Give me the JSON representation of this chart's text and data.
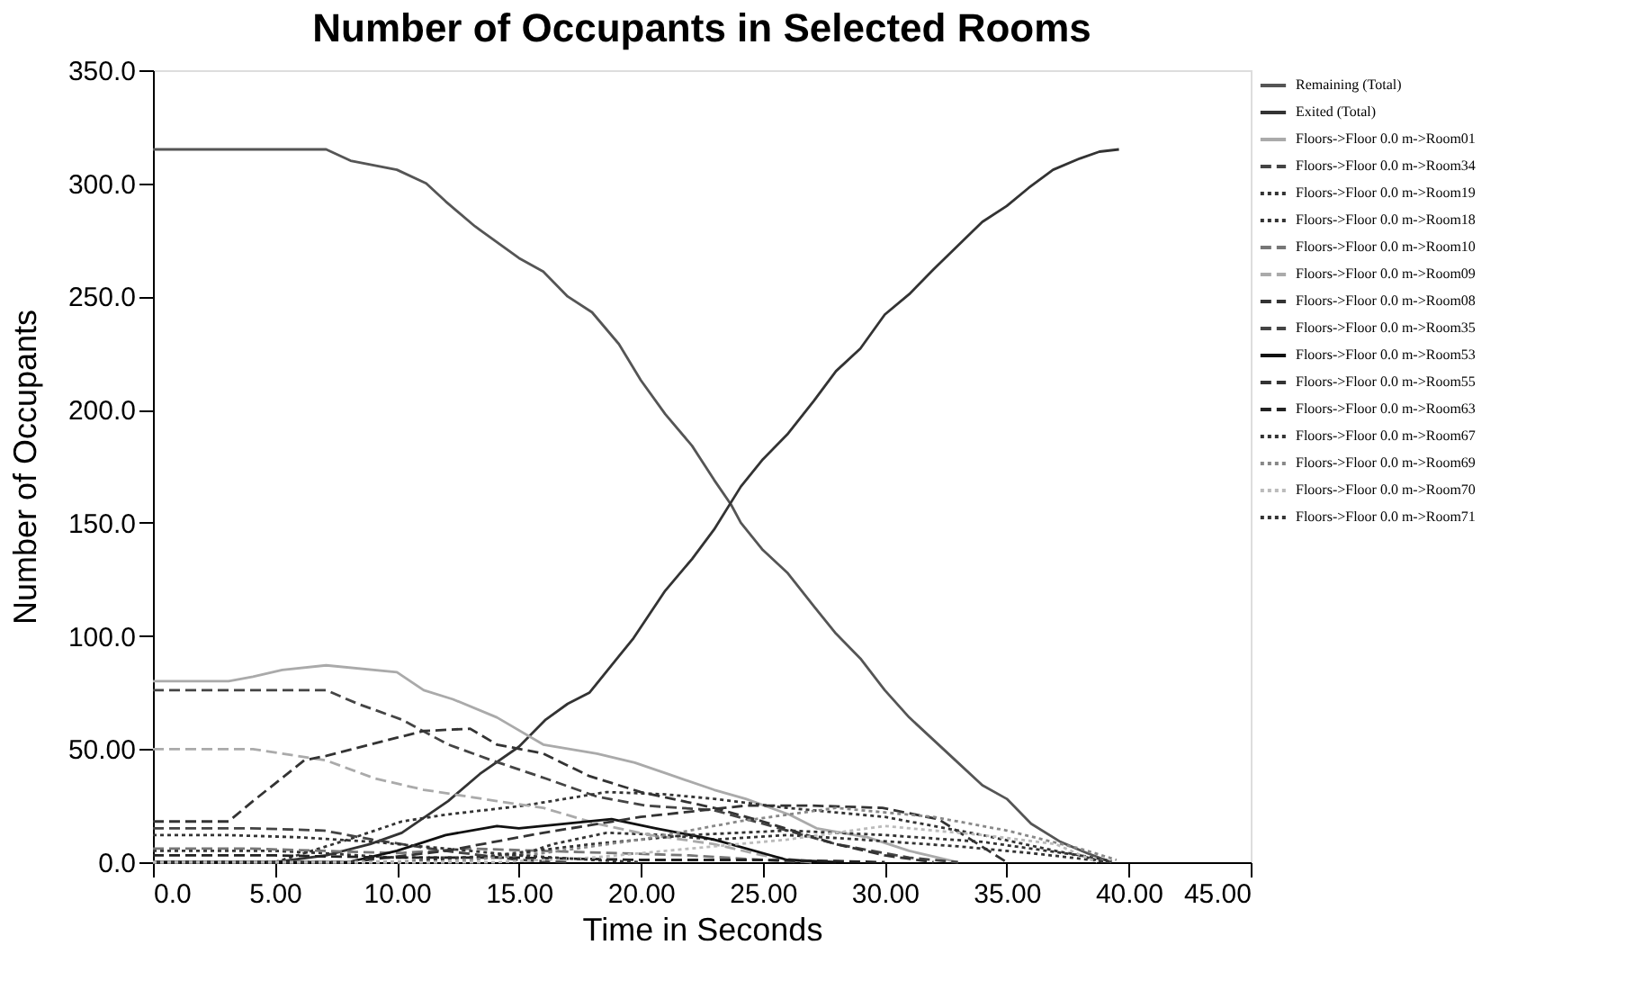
{
  "chart_data": {
    "type": "line",
    "title": "Number of Occupants in Selected Rooms",
    "xlabel": "Time in Seconds",
    "ylabel": "Number of Occupants",
    "xlim": [
      0,
      45
    ],
    "xticks": [
      {
        "value": 0,
        "label": "0.0"
      },
      {
        "value": 5,
        "label": "5.00"
      },
      {
        "value": 10,
        "label": "10.00"
      },
      {
        "value": 15,
        "label": "15.00"
      },
      {
        "value": 20,
        "label": "20.00"
      },
      {
        "value": 25,
        "label": "25.00"
      },
      {
        "value": 30,
        "label": "30.00"
      },
      {
        "value": 35,
        "label": "35.00"
      },
      {
        "value": 40,
        "label": "40.00"
      },
      {
        "value": 45,
        "label": "45.00"
      }
    ],
    "ylim": [
      0,
      350
    ],
    "yticks": [
      {
        "value": 0,
        "label": "0.0"
      },
      {
        "value": 50,
        "label": "50.00"
      },
      {
        "value": 100,
        "label": "100.0"
      },
      {
        "value": 150,
        "label": "150.0"
      },
      {
        "value": 200,
        "label": "200.0"
      },
      {
        "value": 250,
        "label": "250.0"
      },
      {
        "value": 300,
        "label": "300.0"
      },
      {
        "value": 350,
        "label": "350.0"
      }
    ],
    "grid": false,
    "legend": "top right",
    "marker": "none",
    "series": [
      {
        "name": "Remaining (Total)",
        "color": "#555555",
        "line_style": "solid",
        "x": [
          0,
          7.1,
          8.1,
          10,
          11.2,
          12,
          13.2,
          15,
          16,
          17,
          18,
          19.1,
          20,
          21,
          22.1,
          23,
          23.7,
          24.1,
          25,
          26,
          27.1,
          28,
          29,
          30,
          31,
          32.9,
          34,
          35,
          36,
          37.2,
          38.3,
          39.3
        ],
        "values": [
          315,
          315,
          310,
          306,
          300,
          292,
          281,
          267,
          261,
          250,
          243,
          229,
          213,
          198,
          184,
          169,
          158,
          150,
          138,
          128,
          113,
          101,
          90,
          76,
          64,
          45,
          34,
          28,
          17,
          9,
          4,
          0
        ]
      },
      {
        "name": "Exited (Total)",
        "color": "#333333",
        "line_style": "solid",
        "x": [
          0,
          5,
          7.1,
          8.9,
          10.2,
          12.1,
          13.4,
          15,
          16.1,
          17,
          17.9,
          19.1,
          19.7,
          21,
          22.1,
          23,
          24.1,
          25,
          26,
          27.1,
          28,
          29,
          30,
          31,
          32,
          34,
          35,
          35.9,
          36.9,
          38,
          38.8,
          39.6
        ],
        "values": [
          0,
          0,
          3,
          8,
          13,
          27,
          39,
          51,
          63,
          70,
          75,
          91,
          99,
          120,
          134,
          147,
          166,
          178,
          189,
          204,
          217,
          227,
          242,
          251,
          262,
          283,
          290,
          298,
          306,
          311,
          314,
          315
        ]
      },
      {
        "name": "Floors->Floor 0.0 m->Room01",
        "color": "#aaaaaa",
        "line_style": "solid",
        "x": [
          0,
          3.1,
          4.1,
          5.3,
          7.1,
          10,
          11.1,
          12.3,
          14.1,
          16,
          18.2,
          19.75,
          21.1,
          23,
          24.3,
          26.1,
          27.2,
          29.3,
          31,
          33
        ],
        "values": [
          80,
          80,
          82,
          85,
          87,
          84,
          76,
          72,
          64,
          52,
          48,
          44,
          39,
          32,
          28,
          21,
          15,
          11,
          5,
          0
        ]
      },
      {
        "name": "Floors->Floor 0.0 m->Room34",
        "color": "#444444",
        "line_style": "dashed",
        "x": [
          0,
          3,
          7.1,
          8.4,
          10.2,
          12.1,
          13.9,
          16.1,
          18.2,
          20.2,
          23,
          25,
          28,
          31,
          33
        ],
        "values": [
          76,
          76,
          76,
          70,
          63,
          52,
          45,
          37,
          29,
          25,
          23,
          17,
          8,
          2,
          0
        ]
      },
      {
        "name": "Floors->Floor 0.0 m->Room19",
        "color": "#333333",
        "line_style": "dotted",
        "x": [
          0,
          5,
          8,
          10.2,
          12,
          15.2,
          18.6,
          21,
          23,
          26,
          30,
          34,
          37,
          39.3
        ],
        "values": [
          0,
          0,
          10,
          18,
          21,
          25,
          31,
          30,
          28,
          24,
          20,
          12,
          5,
          0.5
        ]
      },
      {
        "name": "Floors->Floor 0.0 m->Room18",
        "color": "#333333",
        "line_style": "dotted",
        "x": [
          0,
          5,
          7,
          10,
          13,
          15,
          16.4,
          18.6,
          21,
          23,
          26,
          29,
          33,
          36,
          39.3
        ],
        "values": [
          5,
          5,
          4,
          2,
          2,
          3,
          8,
          13,
          12,
          10,
          12,
          10,
          7,
          4,
          0
        ]
      },
      {
        "name": "Floors->Floor 0.0 m->Room10",
        "color": "#777777",
        "line_style": "dashed",
        "x": [
          0,
          4,
          7,
          10,
          13,
          16,
          19,
          22,
          25,
          27
        ],
        "values": [
          6,
          6,
          5,
          4,
          6,
          5,
          4,
          3,
          1,
          0
        ]
      },
      {
        "name": "Floors->Floor 0.0 m->Room09",
        "color": "#aaaaaa",
        "line_style": "dashed",
        "x": [
          0,
          4.1,
          5.3,
          7.1,
          9.1,
          11.1,
          14.1,
          16,
          18.2,
          20.4,
          23,
          25,
          27
        ],
        "values": [
          50,
          50,
          48,
          45,
          37,
          32,
          27,
          24,
          17,
          12,
          8,
          3,
          0
        ]
      },
      {
        "name": "Floors->Floor 0.0 m->Room08",
        "color": "#333333",
        "line_style": "dashed",
        "x": [
          0,
          3.1,
          4.1,
          6.2,
          7.1,
          10,
          11.1,
          13,
          14.1,
          16,
          17.9,
          20,
          23,
          25,
          28,
          30,
          32
        ],
        "values": [
          18,
          18,
          27,
          45,
          47,
          55,
          58,
          59,
          52,
          48,
          38,
          31,
          24,
          18,
          8,
          3,
          0
        ]
      },
      {
        "name": "Floors->Floor 0.0 m->Room35",
        "color": "#444444",
        "line_style": "dashed",
        "x": [
          0,
          4,
          7,
          9,
          12,
          15,
          17
        ],
        "values": [
          15,
          15,
          14,
          10,
          5,
          1,
          0
        ]
      },
      {
        "name": "Floors->Floor 0.0 m->Room53",
        "color": "#111111",
        "line_style": "solid",
        "x": [
          0,
          8,
          10,
          12,
          14.1,
          15,
          18.8,
          20.6,
          23,
          26,
          28
        ],
        "values": [
          0,
          0,
          5,
          12,
          16,
          15,
          19,
          15,
          10,
          1,
          0
        ]
      },
      {
        "name": "Floors->Floor 0.0 m->Room55",
        "color": "#333333",
        "line_style": "dashed",
        "x": [
          0,
          8,
          12,
          16,
          20,
          24.3,
          27,
          29.9,
          32.2,
          35
        ],
        "values": [
          0,
          0,
          5,
          13,
          20,
          25,
          25,
          24,
          19,
          0
        ]
      },
      {
        "name": "Floors->Floor 0.0 m->Room63",
        "color": "#222222",
        "line_style": "dashed",
        "x": [
          0,
          5,
          10,
          15,
          20,
          25,
          28,
          30
        ],
        "values": [
          3,
          3,
          2,
          2,
          1,
          1,
          0.5,
          0
        ]
      },
      {
        "name": "Floors->Floor 0.0 m->Room67",
        "color": "#333333",
        "line_style": "dotted",
        "x": [
          0,
          10,
          14,
          18,
          22,
          26,
          30,
          34,
          38,
          39
        ],
        "values": [
          0,
          0,
          3,
          8,
          12,
          14,
          12,
          9,
          3,
          0
        ]
      },
      {
        "name": "Floors->Floor 0.0 m->Room69",
        "color": "#888888",
        "line_style": "dotted",
        "x": [
          0,
          12,
          16,
          20,
          24,
          28,
          32,
          35,
          38,
          39.5
        ],
        "values": [
          0,
          0,
          4,
          10,
          18,
          24,
          20,
          14,
          6,
          1
        ]
      },
      {
        "name": "Floors->Floor 0.0 m->Room70",
        "color": "#bbbbbb",
        "line_style": "dotted",
        "x": [
          0,
          14,
          18,
          22,
          26,
          30,
          34,
          37,
          38.7
        ],
        "values": [
          0,
          0,
          2,
          6,
          10,
          16,
          12,
          8,
          0
        ]
      },
      {
        "name": "Floors->Floor 0.0 m->Room71",
        "color": "#333333",
        "line_style": "dotted",
        "x": [
          0,
          3,
          6,
          9,
          12,
          15,
          18,
          20
        ],
        "values": [
          12,
          12,
          11,
          9,
          6,
          3,
          1,
          0
        ]
      }
    ]
  }
}
